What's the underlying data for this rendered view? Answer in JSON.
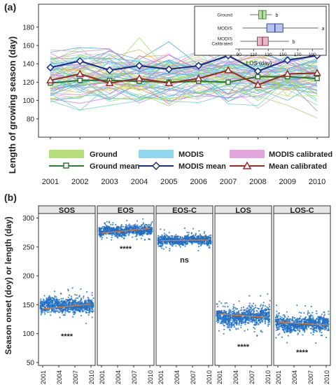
{
  "panel_a": {
    "label": "(a)",
    "ylabel": "Length of growing season (day)",
    "yticks": [
      "80",
      "100",
      "120",
      "140",
      "160",
      "180"
    ],
    "xticks": [
      "2001",
      "2002",
      "2003",
      "2004",
      "2005",
      "2006",
      "2007",
      "2008",
      "2009",
      "2010"
    ],
    "legend": {
      "ground": "Ground",
      "modis": "MODIS",
      "modis_cal": "MODIS calibrated",
      "ground_mean": "Ground mean",
      "modis_mean": "MODIS mean",
      "mean_cal": "Mean calibrated"
    },
    "inset": {
      "xlabel": "LOS (day)",
      "xticks": [
        "90",
        "110",
        "130",
        "150",
        "170",
        "190"
      ],
      "rows": [
        {
          "label": "Ground",
          "letter": "b"
        },
        {
          "label": "MODIS",
          "letter": "a"
        },
        {
          "label": "MODIS Calibrated",
          "letter": "b"
        }
      ]
    }
  },
  "panel_b": {
    "label": "(b)",
    "ylabel": "Season onset (doy) or length (day)",
    "yticks": [
      "50",
      "100",
      "150",
      "200",
      "250",
      "300"
    ],
    "xticks": [
      "2001",
      "2004",
      "2007",
      "2010"
    ],
    "facets": [
      {
        "title": "SOS",
        "sig": "****"
      },
      {
        "title": "EOS",
        "sig": "****"
      },
      {
        "title": "EOS-C",
        "sig": "ns"
      },
      {
        "title": "LOS",
        "sig": "****"
      },
      {
        "title": "LOS-C",
        "sig": "****"
      }
    ]
  },
  "colors": {
    "ground": "#b5e07a",
    "modis": "#8fd6ee",
    "modis_cal": "#e0a6dc",
    "ground_mean": "#2e7d32",
    "modis_mean": "#1b2f8a",
    "mean_cal": "#9c2b24",
    "dots": "#1f6fc5",
    "trend": "#e07a2a"
  },
  "chart_data": [
    {
      "type": "line",
      "x": [
        2001,
        2002,
        2003,
        2004,
        2005,
        2006,
        2007,
        2008,
        2009,
        2010
      ],
      "xlabel": "",
      "ylabel": "Length of growing season (day)",
      "ylim": [
        60,
        205
      ],
      "series": [
        {
          "name": "Ground mean",
          "values": [
            119,
            122,
            122,
            121,
            120,
            121,
            120,
            126,
            126,
            124
          ]
        },
        {
          "name": "MODIS mean",
          "values": [
            136,
            143,
            133,
            138,
            134,
            138,
            149,
            132,
            144,
            149
          ]
        },
        {
          "name": "Mean calibrated",
          "values": [
            122,
            129,
            119,
            124,
            119,
            124,
            133,
            117,
            129,
            130
          ]
        }
      ],
      "legend_placement": "bottom",
      "grid": false
    },
    {
      "type": "box",
      "xlabel": "LOS (day)",
      "xlim": [
        85,
        205
      ],
      "categories": [
        "Ground",
        "MODIS",
        "MODIS Calibrated"
      ],
      "stats": [
        {
          "min": 105,
          "q1": 117,
          "median": 122,
          "q3": 127,
          "max": 135
        },
        {
          "min": 95,
          "q1": 128,
          "median": 139,
          "q3": 150,
          "max": 198
        },
        {
          "min": 92,
          "q1": 115,
          "median": 122,
          "q3": 130,
          "max": 158
        }
      ],
      "letters": [
        "b",
        "a",
        "b"
      ]
    },
    {
      "type": "scatter",
      "x": [
        2001,
        2002,
        2003,
        2004,
        2005,
        2006,
        2007,
        2008,
        2009,
        2010
      ],
      "ylabel": "Season onset (doy) or length (day)",
      "ylim": [
        45,
        320
      ],
      "series": [
        {
          "name": "SOS",
          "center": [
            147,
            152,
            151,
            149,
            148,
            150,
            148,
            149,
            147,
            148
          ],
          "spread": 16,
          "trend": [
            143,
            151
          ]
        },
        {
          "name": "EOS",
          "center": [
            276,
            280,
            278,
            277,
            276,
            280,
            281,
            277,
            280,
            279
          ],
          "spread": 10,
          "trend": [
            274,
            282
          ]
        },
        {
          "name": "EOS-C",
          "center": [
            260,
            263,
            261,
            262,
            260,
            263,
            264,
            262,
            262,
            261
          ],
          "spread": 10,
          "trend": [
            261,
            262
          ]
        },
        {
          "name": "LOS",
          "center": [
            131,
            128,
            126,
            128,
            128,
            130,
            133,
            128,
            132,
            131
          ],
          "spread": 18,
          "trend": [
            134,
            128
          ]
        },
        {
          "name": "LOS-C",
          "center": [
            121,
            118,
            114,
            116,
            116,
            118,
            120,
            115,
            118,
            118
          ],
          "spread": 17,
          "trend": [
            120,
            115
          ]
        }
      ],
      "significance": [
        "****",
        "****",
        "ns",
        "****",
        "****"
      ]
    }
  ]
}
